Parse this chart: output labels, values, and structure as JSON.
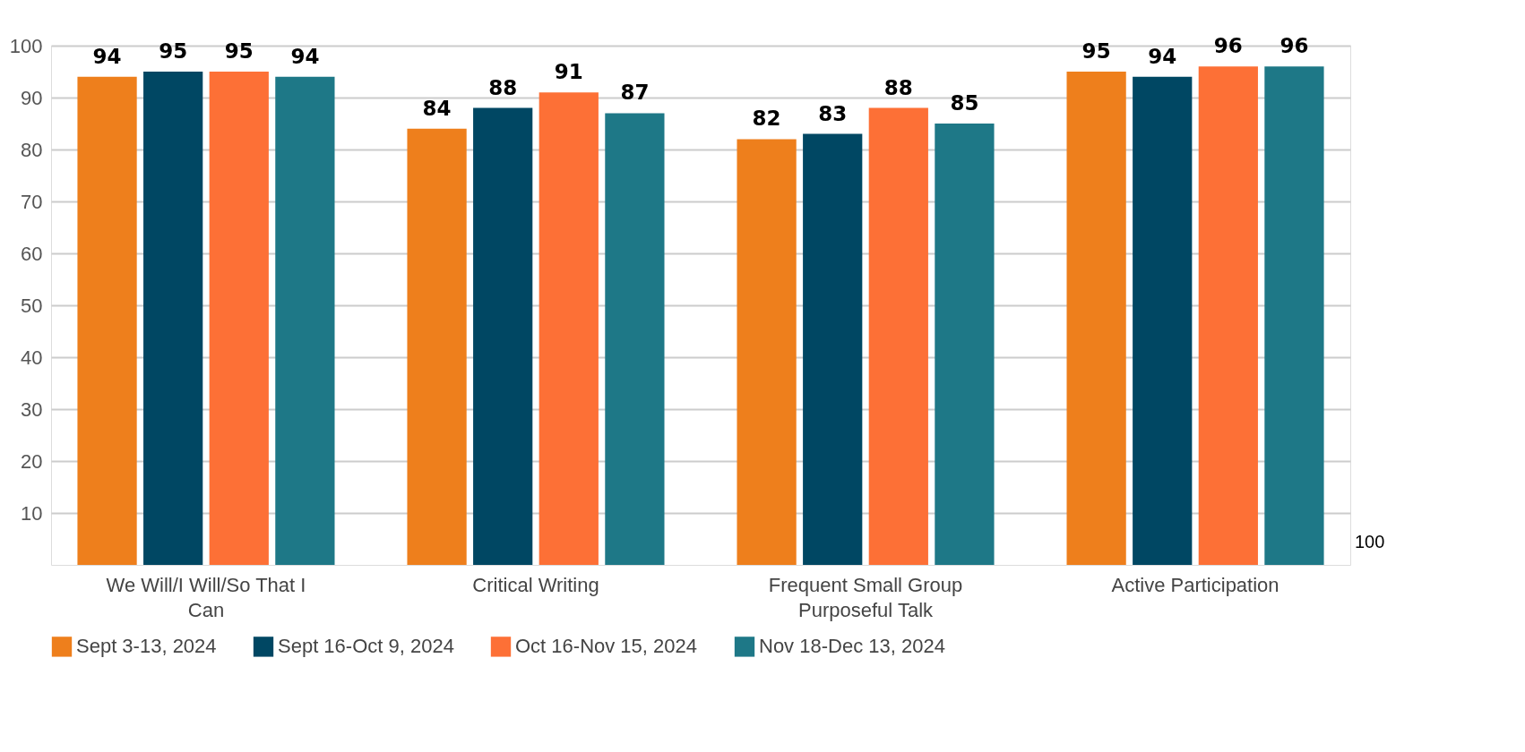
{
  "chart_data": {
    "type": "bar",
    "categories": [
      "We Will/I Will/So That I Can",
      "Critical Writing",
      "Frequent Small Group Purposeful Talk",
      "Active Participation"
    ],
    "series": [
      {
        "name": "Sept 3-13, 2024",
        "color": "#ee7f1c",
        "values": [
          94,
          84,
          82,
          95
        ]
      },
      {
        "name": "Sept 16-Oct 9, 2024",
        "color": "#004763",
        "values": [
          95,
          88,
          83,
          94
        ]
      },
      {
        "name": "Oct 16-Nov 15, 2024",
        "color": "#fd7036",
        "values": [
          95,
          91,
          88,
          96
        ]
      },
      {
        "name": "Nov 18-Dec 13, 2024",
        "color": "#1e7887",
        "values": [
          94,
          87,
          85,
          96
        ]
      }
    ],
    "ylim": [
      0,
      100
    ],
    "yticks": [
      10,
      20,
      30,
      40,
      50,
      60,
      70,
      80,
      90,
      100
    ],
    "grid": "y",
    "legend": "bottom",
    "data_labels": true,
    "annotations": [
      "100"
    ]
  }
}
